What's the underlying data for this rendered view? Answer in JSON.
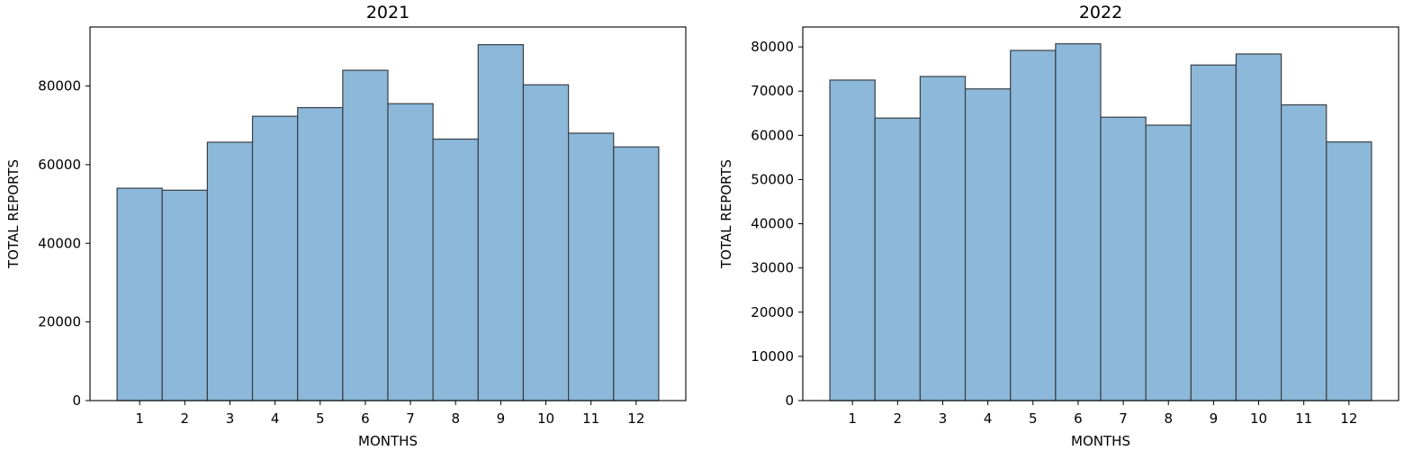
{
  "chart_data": [
    {
      "type": "bar",
      "title": "2021",
      "xlabel": "MONTHS",
      "ylabel": "TOTAL REPORTS",
      "categories": [
        "1",
        "2",
        "3",
        "4",
        "5",
        "6",
        "7",
        "8",
        "9",
        "10",
        "11",
        "12"
      ],
      "values": [
        54000,
        53500,
        65700,
        72300,
        74500,
        84000,
        75500,
        66500,
        90500,
        80300,
        68000,
        64500
      ],
      "ylim": [
        0,
        95000
      ],
      "yticks": [
        0,
        20000,
        40000,
        60000,
        80000
      ],
      "bar_color": "#8cb8da",
      "edge_color": "#3a3f44",
      "grid": false
    },
    {
      "type": "bar",
      "title": "2022",
      "xlabel": "MONTHS",
      "ylabel": "TOTAL REPORTS",
      "categories": [
        "1",
        "2",
        "3",
        "4",
        "5",
        "6",
        "7",
        "8",
        "9",
        "10",
        "11",
        "12"
      ],
      "values": [
        72500,
        63900,
        73300,
        70500,
        79200,
        80700,
        64100,
        62300,
        75900,
        78400,
        66900,
        58500
      ],
      "ylim": [
        0,
        84500
      ],
      "yticks": [
        0,
        10000,
        20000,
        30000,
        40000,
        50000,
        60000,
        70000,
        80000
      ],
      "bar_color": "#8cb8da",
      "edge_color": "#3a3f44",
      "grid": false
    }
  ]
}
